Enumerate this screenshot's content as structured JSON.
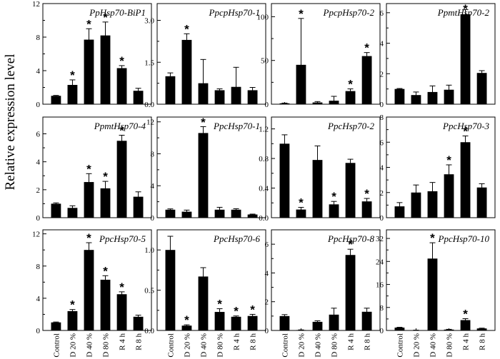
{
  "figure": {
    "ylabel": "Relative expression level"
  },
  "chart_data": [
    {
      "type": "bar",
      "title": "PpHsp70-BiP1",
      "categories": [
        "Control",
        "D 20 %",
        "D 40 %",
        "D 80 %",
        "R 4 h",
        "R 8 h"
      ],
      "values": [
        1.0,
        2.3,
        7.7,
        8.2,
        4.3,
        1.6
      ],
      "errors": [
        0.05,
        0.6,
        1.3,
        1.6,
        0.3,
        0.3
      ],
      "significant": [
        false,
        true,
        true,
        true,
        true,
        false
      ],
      "ylim": [
        0,
        12
      ],
      "yticks": [
        0,
        4,
        8,
        12
      ],
      "ytick_labels": [
        "0",
        "4",
        "8",
        "12"
      ],
      "xlabel": "",
      "ylabel": ""
    },
    {
      "type": "bar",
      "title": "PpcpHsp70-1",
      "categories": [
        "Control",
        "D 20 %",
        "D 40 %",
        "D 80 %",
        "R 4 h",
        "R 8 h"
      ],
      "values": [
        1.0,
        2.3,
        0.75,
        0.5,
        0.62,
        0.5
      ],
      "errors": [
        0.12,
        0.22,
        0.85,
        0.05,
        0.7,
        0.1
      ],
      "significant": [
        false,
        true,
        false,
        false,
        false,
        false
      ],
      "ylim": [
        0,
        3.6
      ],
      "yticks": [
        0,
        1.5,
        3.0
      ],
      "ytick_labels": [
        "0.0",
        "1.5",
        "3.0"
      ],
      "xlabel": "",
      "ylabel": ""
    },
    {
      "type": "bar",
      "title": "PpcpHsp70-2",
      "categories": [
        "Control",
        "D 20 %",
        "D 40 %",
        "D 80 %",
        "R 4 h",
        "R 8 h"
      ],
      "values": [
        1.0,
        45.0,
        2.0,
        4.0,
        15.0,
        55.0
      ],
      "errors": [
        0.3,
        53.0,
        1.0,
        5.0,
        2.5,
        4.0
      ],
      "significant": [
        false,
        true,
        false,
        false,
        true,
        true
      ],
      "ylim": [
        0,
        115
      ],
      "yticks": [
        0,
        50,
        100
      ],
      "ytick_labels": [
        "0",
        "50",
        "100"
      ],
      "xlabel": "",
      "ylabel": ""
    },
    {
      "type": "bar",
      "title": "PpmtHsp70-2",
      "categories": [
        "Control",
        "D 20 %",
        "D 40 %",
        "D 80 %",
        "R 4 h",
        "R 8 h"
      ],
      "values": [
        1.0,
        0.6,
        0.8,
        0.95,
        5.9,
        2.05
      ],
      "errors": [
        0.03,
        0.2,
        0.4,
        0.3,
        0.3,
        0.15
      ],
      "significant": [
        false,
        false,
        false,
        false,
        true,
        false
      ],
      "ylim": [
        0,
        6.6
      ],
      "yticks": [
        0,
        2,
        4,
        6
      ],
      "ytick_labels": [
        "0",
        "2",
        "4",
        "6"
      ],
      "xlabel": "",
      "ylabel": ""
    },
    {
      "type": "bar",
      "title": "PpmtHsp70-4",
      "categories": [
        "Control",
        "D 20 %",
        "D 40 %",
        "D 80 %",
        "R 4 h",
        "R 8 h"
      ],
      "values": [
        1.0,
        0.7,
        2.55,
        2.1,
        5.5,
        1.5
      ],
      "errors": [
        0.06,
        0.15,
        0.6,
        0.5,
        0.4,
        0.35
      ],
      "significant": [
        false,
        false,
        true,
        true,
        true,
        false
      ],
      "ylim": [
        0,
        7.2
      ],
      "yticks": [
        0,
        2,
        4,
        6
      ],
      "ytick_labels": [
        "0",
        "2",
        "4",
        "6"
      ],
      "xlabel": "",
      "ylabel": ""
    },
    {
      "type": "bar",
      "title": "PpcHsp70-1",
      "categories": [
        "Control",
        "D 20 %",
        "D 40 %",
        "D 80 %",
        "R 4 h",
        "R 8 h"
      ],
      "values": [
        1.0,
        0.75,
        10.6,
        1.0,
        1.0,
        0.4
      ],
      "errors": [
        0.1,
        0.2,
        0.8,
        0.3,
        0.12,
        0.05
      ],
      "significant": [
        false,
        false,
        true,
        false,
        false,
        false
      ],
      "ylim": [
        0,
        12.6
      ],
      "yticks": [
        0,
        4,
        8,
        12
      ],
      "ytick_labels": [
        "0",
        "4",
        "8",
        "12"
      ],
      "xlabel": "",
      "ylabel": ""
    },
    {
      "type": "bar",
      "title": "PpcHsp70-2",
      "categories": [
        "Control",
        "D 20 %",
        "D 40 %",
        "D 80 %",
        "R 4 h",
        "R 8 h"
      ],
      "values": [
        1.0,
        0.11,
        0.78,
        0.18,
        0.74,
        0.22
      ],
      "errors": [
        0.12,
        0.03,
        0.19,
        0.04,
        0.05,
        0.04
      ],
      "significant": [
        false,
        true,
        false,
        true,
        false,
        true
      ],
      "ylim": [
        0,
        1.36
      ],
      "yticks": [
        0,
        0.4,
        0.8,
        1.2
      ],
      "ytick_labels": [
        "0.0",
        "0.4",
        "0.8",
        "1.2"
      ],
      "xlabel": "",
      "ylabel": ""
    },
    {
      "type": "bar",
      "title": "PpcHsp70-3",
      "categories": [
        "Control",
        "D 20 %",
        "D 40 %",
        "D 80 %",
        "R 4 h",
        "R 8 h"
      ],
      "values": [
        0.9,
        2.0,
        2.1,
        3.45,
        6.0,
        2.4
      ],
      "errors": [
        0.3,
        0.6,
        0.7,
        0.75,
        0.5,
        0.3
      ],
      "significant": [
        false,
        false,
        false,
        true,
        true,
        false
      ],
      "ylim": [
        0,
        8.0
      ],
      "yticks": [
        0,
        2,
        4,
        6,
        8
      ],
      "ytick_labels": [
        "0",
        "2",
        "4",
        "6",
        "8"
      ],
      "xlabel": "",
      "ylabel": ""
    },
    {
      "type": "bar",
      "title": "PpcHsp70-5",
      "categories": [
        "Control",
        "D 20 %",
        "D 40 %",
        "D 80 %",
        "R 4 h",
        "R 8 h"
      ],
      "values": [
        1.0,
        2.4,
        10.0,
        6.3,
        4.5,
        1.7
      ],
      "errors": [
        0.05,
        0.2,
        0.9,
        0.5,
        0.3,
        0.2
      ],
      "significant": [
        false,
        true,
        true,
        true,
        true,
        false
      ],
      "ylim": [
        0,
        12.5
      ],
      "yticks": [
        0,
        4,
        8,
        12
      ],
      "ytick_labels": [
        "0",
        "4",
        "8",
        "12"
      ],
      "xlabel": "",
      "ylabel": ""
    },
    {
      "type": "bar",
      "title": "PpcHsp70-6",
      "categories": [
        "Control",
        "D 20 %",
        "D 40 %",
        "D 80 %",
        "R 4 h",
        "R 8 h"
      ],
      "values": [
        1.0,
        0.06,
        0.67,
        0.23,
        0.17,
        0.18
      ],
      "errors": [
        0.17,
        0.01,
        0.11,
        0.04,
        0.01,
        0.02
      ],
      "significant": [
        false,
        true,
        false,
        true,
        true,
        true
      ],
      "ylim": [
        0,
        1.25
      ],
      "yticks": [
        0,
        0.5,
        1.0
      ],
      "ytick_labels": [
        "0.0",
        "0.5",
        "1.0"
      ],
      "xlabel": "",
      "ylabel": ""
    },
    {
      "type": "bar",
      "title": "PpcHsp70-8",
      "categories": [
        "Control",
        "D 20 %",
        "D 40 %",
        "D 80 %",
        "R 4 h",
        "R 8 h"
      ],
      "values": [
        1.0,
        0.03,
        0.6,
        1.1,
        5.25,
        1.3
      ],
      "errors": [
        0.1,
        0.01,
        0.07,
        0.45,
        0.4,
        0.25
      ],
      "significant": [
        false,
        false,
        false,
        false,
        true,
        false
      ],
      "ylim": [
        0,
        7.0
      ],
      "yticks": [
        0,
        2,
        4,
        6
      ],
      "ytick_labels": [
        "0",
        "2",
        "4",
        "6"
      ],
      "xlabel": "",
      "ylabel": ""
    },
    {
      "type": "bar",
      "title": "PpcHsp70-10",
      "categories": [
        "Control",
        "D 20 %",
        "D 40 %",
        "D 80 %",
        "R 4 h",
        "R 8 h"
      ],
      "values": [
        1.0,
        0.1,
        25.0,
        0.3,
        3.6,
        0.7
      ],
      "errors": [
        0.1,
        0.02,
        5.5,
        0.1,
        0.5,
        0.1
      ],
      "significant": [
        false,
        false,
        true,
        false,
        true,
        false
      ],
      "ylim": [
        0,
        35
      ],
      "yticks": [
        0,
        8,
        16,
        24,
        32
      ],
      "ytick_labels": [
        "0",
        "8",
        "16",
        "24",
        "32"
      ],
      "xlabel": "",
      "ylabel": ""
    }
  ]
}
